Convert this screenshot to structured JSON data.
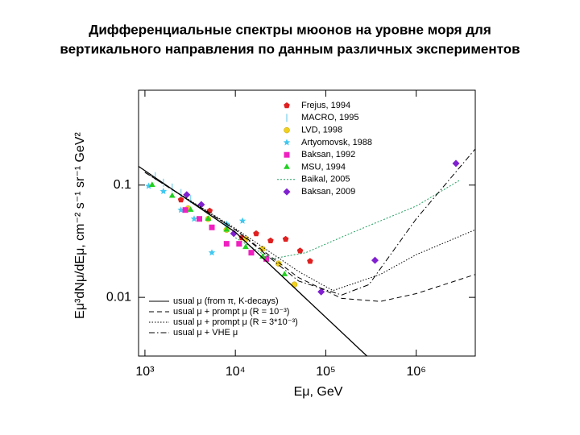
{
  "chart_data": {
    "type": "scatter",
    "title": [
      "Дифференциальные спектры мюонов на уровне моря для",
      "вертикального направления по данным различных экспериментов"
    ],
    "x_label": "Eμ, GeV",
    "y_label": "Eμ³dNμ/dEμ, cm⁻² s⁻¹ sr⁻¹ GeV²",
    "xscale": "log",
    "yscale": "log",
    "xlim": [
      850,
      4500000
    ],
    "ylim": [
      0.003,
      0.7
    ],
    "xticks": [
      {
        "value": 1000,
        "label": "10³"
      },
      {
        "value": 10000,
        "label": "10⁴"
      },
      {
        "value": 100000,
        "label": "10⁵"
      },
      {
        "value": 1000000,
        "label": "10⁶"
      }
    ],
    "yticks": [
      0.1,
      0.01
    ],
    "series": [
      {
        "name": "Frejus, 1994",
        "marker": "pentagon",
        "color": "#e02020",
        "x": [
          2500,
          5200,
          11800,
          17000,
          24500,
          36000,
          52000,
          67000
        ],
        "values": [
          0.074,
          0.059,
          0.034,
          0.037,
          0.032,
          0.033,
          0.026,
          0.021
        ]
      },
      {
        "name": "MACRO, 1995",
        "marker": "vline",
        "color": "#90d8f0",
        "x": [
          1300,
          1600,
          2000,
          2500,
          3200
        ],
        "values": [
          0.12,
          0.105,
          0.095,
          0.085,
          0.075
        ]
      },
      {
        "name": "LVD, 1998",
        "marker": "circle",
        "color": "#f0d020",
        "x": [
          3000,
          5000,
          8000,
          13000,
          20000,
          30000,
          45000
        ],
        "values": [
          0.062,
          0.05,
          0.04,
          0.033,
          0.027,
          0.02,
          0.013
        ]
      },
      {
        "name": "Artyomovsk, 1988",
        "marker": "star",
        "color": "#40c8f0",
        "x": [
          1100,
          1600,
          2500,
          3500,
          5500,
          8000,
          12000
        ],
        "values": [
          0.098,
          0.088,
          0.06,
          0.05,
          0.025,
          0.045,
          0.048
        ]
      },
      {
        "name": "Baksan, 1992",
        "marker": "square",
        "color": "#f020c0",
        "x": [
          2800,
          4000,
          5500,
          8000,
          11000,
          15000,
          22000
        ],
        "values": [
          0.06,
          0.05,
          0.042,
          0.03,
          0.03,
          0.025,
          0.022
        ]
      },
      {
        "name": "MSU, 1994",
        "marker": "triangle",
        "color": "#20d020",
        "x": [
          1200,
          2000,
          3200,
          5000,
          8000,
          13000,
          20000,
          35000
        ],
        "values": [
          0.1,
          0.08,
          0.06,
          0.05,
          0.04,
          0.028,
          0.023,
          0.016
        ]
      },
      {
        "name": "Baikal, 2005",
        "dash": "2,2",
        "color": "#20a060",
        "x": [
          10000,
          25000,
          60000,
          200000,
          1000000,
          3000000
        ],
        "values": [
          0.034,
          0.022,
          0.025,
          0.038,
          0.065,
          0.11
        ]
      },
      {
        "name": "Baksan, 2009",
        "marker": "diamond",
        "color": "#8020d0",
        "x": [
          2900,
          4200,
          9600,
          89000,
          350000,
          2750000
        ],
        "values": [
          0.082,
          0.067,
          0.037,
          0.0112,
          0.0214,
          0.156
        ]
      },
      {
        "name": "usual μ (from π, K-decays)",
        "dash": "none",
        "color": "#000000",
        "legend": "lower left",
        "x": [
          850,
          10000,
          285000
        ],
        "values": [
          0.147,
          0.038,
          0.003
        ]
      },
      {
        "name": "usual μ + prompt μ (R = 10⁻³)",
        "dash": "6,4",
        "color": "#000000",
        "legend": "lower left",
        "x": [
          1000,
          10000,
          50000,
          150000,
          400000,
          1000000,
          4500000
        ],
        "values": [
          0.13,
          0.04,
          0.015,
          0.0098,
          0.0092,
          0.0108,
          0.016
        ]
      },
      {
        "name": "usual μ + prompt μ (R = 3*10⁻³)",
        "dash": "1.5,2",
        "color": "#000000",
        "legend": "lower left",
        "x": [
          1000,
          10000,
          50000,
          120000,
          400000,
          1000000,
          4500000
        ],
        "values": [
          0.13,
          0.041,
          0.017,
          0.0115,
          0.016,
          0.024,
          0.04
        ]
      },
      {
        "name": "usual μ + VHE μ",
        "dash": "7,3,1.5,3",
        "color": "#000000",
        "legend": "lower left",
        "x": [
          1000,
          10000,
          50000,
          150000,
          300000,
          1000000,
          4500000
        ],
        "values": [
          0.13,
          0.04,
          0.014,
          0.0105,
          0.013,
          0.05,
          0.21
        ]
      }
    ]
  }
}
